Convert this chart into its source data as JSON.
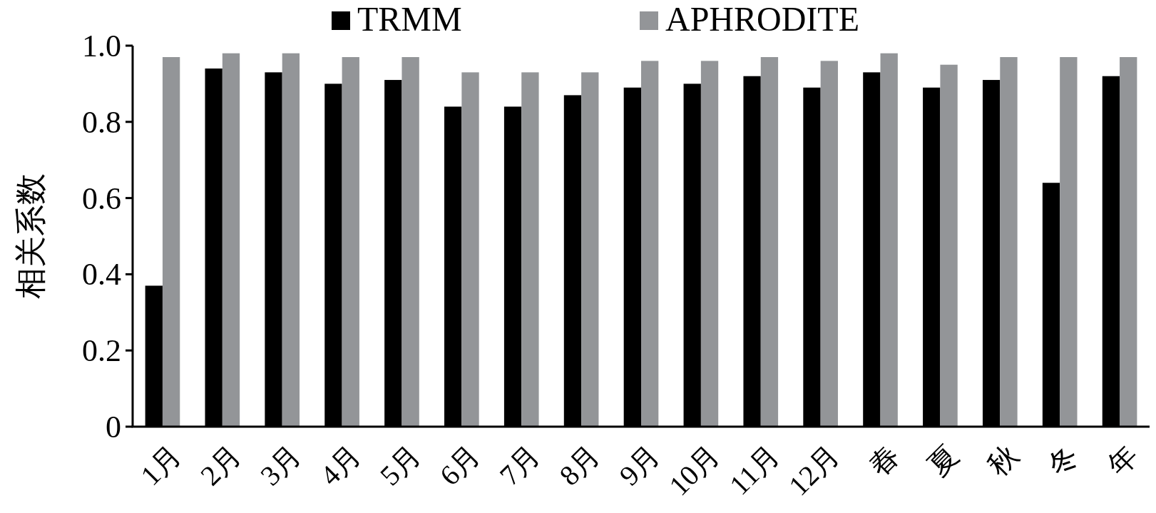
{
  "chart_data": {
    "type": "bar",
    "ylabel": "相关系数",
    "categories": [
      "1月",
      "2月",
      "3月",
      "4月",
      "5月",
      "6月",
      "7月",
      "8月",
      "9月",
      "10月",
      "11月",
      "12月",
      "春",
      "夏",
      "秋",
      "冬",
      "年"
    ],
    "series": [
      {
        "name": "TRMM",
        "color": "#000000",
        "values": [
          0.37,
          0.94,
          0.93,
          0.9,
          0.91,
          0.84,
          0.84,
          0.87,
          0.89,
          0.9,
          0.92,
          0.89,
          0.93,
          0.89,
          0.91,
          0.64,
          0.92
        ]
      },
      {
        "name": "APHRODITE",
        "color": "#939598",
        "values": [
          0.97,
          0.98,
          0.98,
          0.97,
          0.97,
          0.93,
          0.93,
          0.93,
          0.96,
          0.96,
          0.97,
          0.96,
          0.98,
          0.95,
          0.97,
          0.97,
          0.97
        ]
      }
    ],
    "ylim": [
      0,
      1
    ],
    "yticks": [
      0,
      {
        "value": 0.2,
        "label": "0.2"
      },
      {
        "value": 0.4,
        "label": "0.4"
      },
      {
        "value": 0.6,
        "label": "0.6"
      },
      {
        "value": 0.8,
        "label": "0.8"
      },
      {
        "value": 1,
        "label": "1.0"
      }
    ],
    "grid": false,
    "legend": "top"
  }
}
